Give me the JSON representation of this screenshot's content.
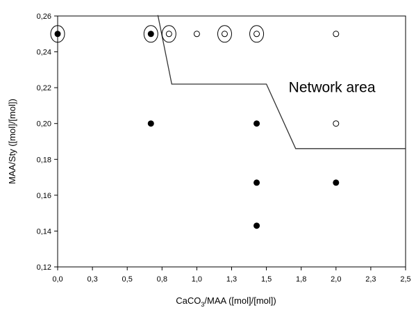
{
  "chart_data": {
    "type": "scatter",
    "title": "",
    "xlabel_main": "CaCO",
    "xlabel_sub": "3",
    "xlabel_rest": "/MAA ([mol]/[mol])",
    "ylabel": "MAA/Sty ([mol]/[mol])",
    "xlim": [
      0,
      2.5
    ],
    "ylim": [
      0.12,
      0.26
    ],
    "x_ticks": [
      0.0,
      0.25,
      0.5,
      0.75,
      1.0,
      1.25,
      1.5,
      1.75,
      2.0,
      2.25,
      2.5
    ],
    "x_tick_labels": [
      "0,0",
      "0,3",
      "0,5",
      "0,8",
      "1,0",
      "1,3",
      "1,5",
      "1,8",
      "2,0",
      "2,3",
      "2,5"
    ],
    "y_ticks": [
      0.12,
      0.14,
      0.16,
      0.18,
      0.2,
      0.22,
      0.24,
      0.26
    ],
    "y_tick_labels": [
      "0,12",
      "0,14",
      "0,16",
      "0,18",
      "0,20",
      "0,22",
      "0,24",
      "0,26"
    ],
    "grid": false,
    "series": [
      {
        "marker": "filled",
        "points": [
          {
            "x": 0.0,
            "y": 0.25
          },
          {
            "x": 0.67,
            "y": 0.25
          },
          {
            "x": 0.67,
            "y": 0.2
          },
          {
            "x": 1.43,
            "y": 0.2
          },
          {
            "x": 1.43,
            "y": 0.167
          },
          {
            "x": 1.43,
            "y": 0.143
          },
          {
            "x": 2.0,
            "y": 0.167
          }
        ]
      },
      {
        "marker": "open",
        "points": [
          {
            "x": 0.8,
            "y": 0.25
          },
          {
            "x": 1.0,
            "y": 0.25
          },
          {
            "x": 1.2,
            "y": 0.25
          },
          {
            "x": 1.43,
            "y": 0.25
          },
          {
            "x": 2.0,
            "y": 0.25
          },
          {
            "x": 2.0,
            "y": 0.2
          }
        ]
      }
    ],
    "circled_points": [
      {
        "x": 0.0,
        "y": 0.25
      },
      {
        "x": 0.67,
        "y": 0.25
      },
      {
        "x": 0.8,
        "y": 0.25
      },
      {
        "x": 1.2,
        "y": 0.25
      },
      {
        "x": 1.43,
        "y": 0.25
      }
    ],
    "boundary_line": [
      {
        "x": 0.72,
        "y": 0.2605
      },
      {
        "x": 0.82,
        "y": 0.222
      },
      {
        "x": 1.5,
        "y": 0.222
      },
      {
        "x": 1.71,
        "y": 0.186
      },
      {
        "x": 2.5,
        "y": 0.186
      }
    ],
    "annotations": [
      {
        "text": "Network area",
        "x": 1.66,
        "y": 0.2175
      }
    ],
    "colors": {
      "axis": "#000000",
      "marker": "#000000",
      "line": "#333333",
      "background": "#ffffff"
    }
  }
}
